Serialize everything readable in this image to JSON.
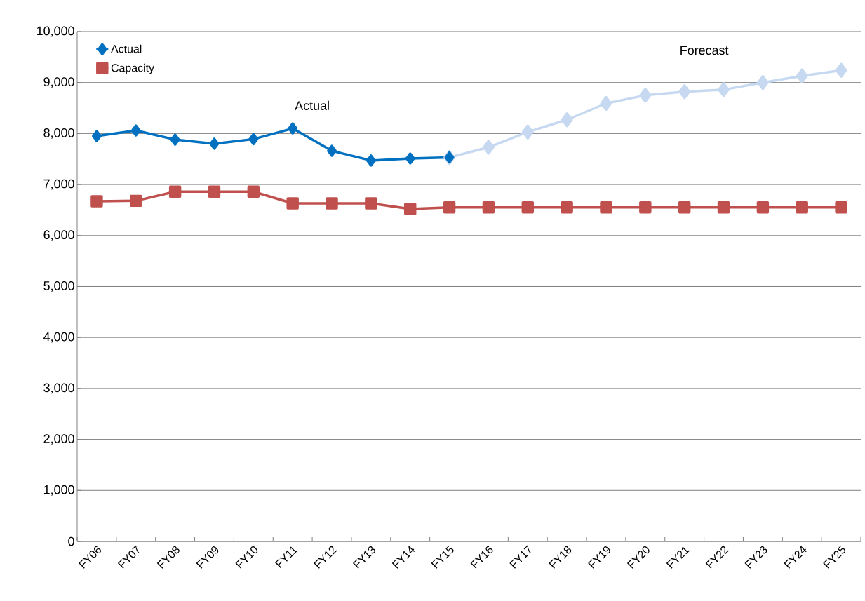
{
  "chart_data": {
    "type": "line",
    "categories": [
      "FY06",
      "FY07",
      "FY08",
      "FY09",
      "FY10",
      "FY11",
      "FY12",
      "FY13",
      "FY14",
      "FY15",
      "FY16",
      "FY17",
      "FY18",
      "FY19",
      "FY20",
      "FY21",
      "FY22",
      "FY23",
      "FY24",
      "FY25"
    ],
    "series": [
      {
        "color": "#c6d9f1",
        "marker": "diamond",
        "values": [
          null,
          null,
          null,
          null,
          null,
          null,
          null,
          null,
          null,
          7530,
          7730,
          8030,
          8270,
          8590,
          8750,
          8820,
          8860,
          9000,
          9130,
          9240
        ]
      },
      {
        "name": "Actual",
        "color": "#0070c0",
        "marker": "diamond",
        "values": [
          7950,
          8060,
          7880,
          7800,
          7890,
          8100,
          7660,
          7470,
          7510,
          7530,
          null,
          null,
          null,
          null,
          null,
          null,
          null,
          null,
          null,
          null
        ]
      },
      {
        "name": "Capacity",
        "color": "#c0504d",
        "marker": "square",
        "values": [
          6670,
          6680,
          6860,
          6860,
          6860,
          6630,
          6630,
          6630,
          6520,
          6550,
          6550,
          6550,
          6550,
          6550,
          6550,
          6550,
          6550,
          6550,
          6550,
          6550
        ]
      }
    ],
    "ylim": [
      0,
      10000
    ],
    "yticks": [
      {
        "value": 0,
        "label": "0"
      },
      {
        "value": 1000,
        "label": "1,000"
      },
      {
        "value": 2000,
        "label": "2,000"
      },
      {
        "value": 3000,
        "label": "3,000"
      },
      {
        "value": 4000,
        "label": "4,000"
      },
      {
        "value": 5000,
        "label": "5,000"
      },
      {
        "value": 6000,
        "label": "6,000"
      },
      {
        "value": 7000,
        "label": "7,000"
      },
      {
        "value": 8000,
        "label": "8,000"
      },
      {
        "value": 9000,
        "label": "9,000"
      },
      {
        "value": 10000,
        "label": "10,000"
      }
    ],
    "annotations": [
      "Actual",
      "Forecast"
    ],
    "grid": "y",
    "legend": "top left",
    "line_style": "solid"
  }
}
